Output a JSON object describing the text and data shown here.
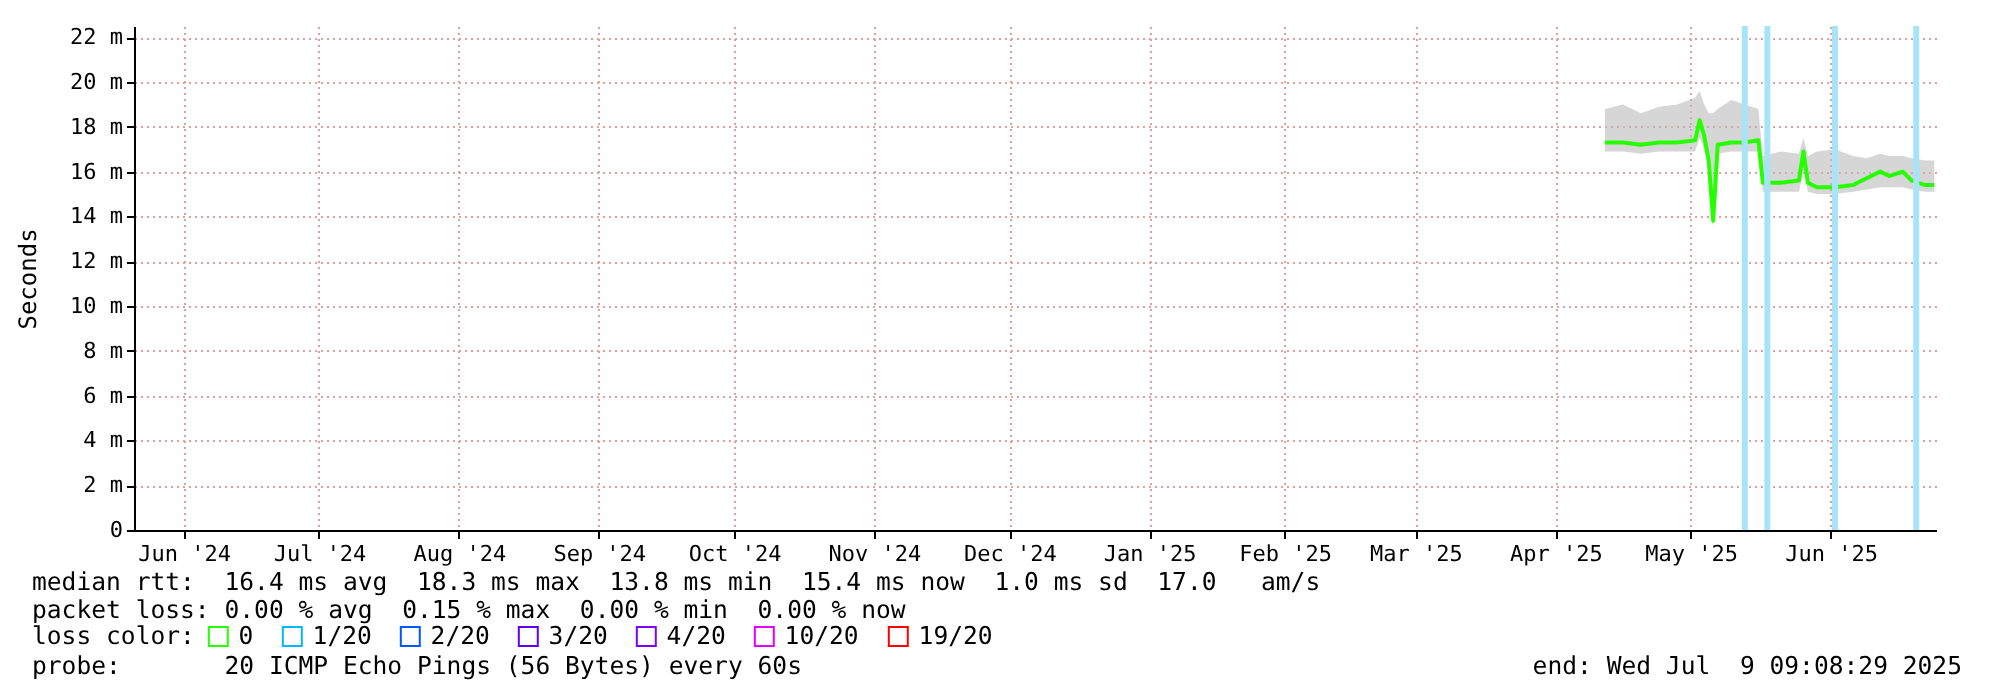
{
  "chart_data": {
    "type": "line",
    "ylabel": "Seconds",
    "legend_title": "loss color:",
    "legend": "bottom left",
    "grid": true,
    "xlim": [
      "2024-06-05",
      "2025-07-09T09:08"
    ],
    "xticks": [
      {
        "value": "2024-06-16",
        "label": "Jun '24"
      },
      {
        "value": "2024-07-16",
        "label": "Jul '24"
      },
      {
        "value": "2024-08-16",
        "label": "Aug '24"
      },
      {
        "value": "2024-09-16",
        "label": "Sep '24"
      },
      {
        "value": "2024-10-16",
        "label": "Oct '24"
      },
      {
        "value": "2024-11-16",
        "label": "Nov '24"
      },
      {
        "value": "2024-12-16",
        "label": "Dec '24"
      },
      {
        "value": "2025-01-16",
        "label": "Jan '25"
      },
      {
        "value": "2025-02-15",
        "label": "Feb '25"
      },
      {
        "value": "2025-03-16",
        "label": "Mar '25"
      },
      {
        "value": "2025-04-16",
        "label": "Apr '25"
      },
      {
        "value": "2025-05-16",
        "label": "May '25"
      },
      {
        "value": "2025-06-16",
        "label": "Jun '25"
      }
    ],
    "ylim": [
      0,
      22.5
    ],
    "yticks": [
      0,
      {
        "value": 2,
        "label": "2 m"
      },
      {
        "value": 4,
        "label": "4 m"
      },
      {
        "value": 6,
        "label": "6 m"
      },
      {
        "value": 8,
        "label": "8 m"
      },
      {
        "value": 10,
        "label": "10 m"
      },
      {
        "value": 12,
        "label": "12 m"
      },
      {
        "value": 14,
        "label": "14 m"
      },
      {
        "value": 16,
        "label": "16 m"
      },
      {
        "value": 18,
        "label": "18 m"
      },
      {
        "value": 20,
        "label": "20 m"
      },
      {
        "value": 22,
        "label": "22 m"
      }
    ],
    "x": [
      "2025-04-27",
      "2025-05-01",
      "2025-05-05",
      "2025-05-09",
      "2025-05-13",
      "2025-05-17",
      "2025-05-18",
      "2025-05-19",
      "2025-05-20",
      "2025-05-21",
      "2025-05-22",
      "2025-05-25",
      "2025-05-28",
      "2025-05-31",
      "2025-06-01",
      "2025-06-05",
      "2025-06-09",
      "2025-06-10",
      "2025-06-11",
      "2025-06-13",
      "2025-06-17",
      "2025-06-21",
      "2025-06-24",
      "2025-06-27",
      "2025-06-29",
      "2025-07-02",
      "2025-07-04",
      "2025-07-07",
      "2025-07-09"
    ],
    "series": [
      {
        "name": "0",
        "color": "#26ff00",
        "values": [
          17.3,
          17.3,
          17.2,
          17.3,
          17.3,
          17.4,
          18.3,
          17.6,
          16.5,
          13.8,
          17.2,
          17.3,
          17.3,
          17.4,
          15.5,
          15.5,
          15.6,
          16.9,
          15.5,
          15.3,
          15.3,
          15.4,
          15.7,
          16.0,
          15.8,
          16.0,
          15.6,
          15.4,
          15.4
        ],
        "lower": [
          16.9,
          16.9,
          16.8,
          16.9,
          16.9,
          16.9,
          17.5,
          17.0,
          16.0,
          13.5,
          16.8,
          16.9,
          16.9,
          16.9,
          15.1,
          15.1,
          15.1,
          16.0,
          15.1,
          15.0,
          15.0,
          15.1,
          15.2,
          15.3,
          15.3,
          15.3,
          15.2,
          15.1,
          15.1
        ],
        "upper": [
          18.8,
          19.0,
          18.6,
          18.9,
          19.0,
          19.3,
          19.6,
          19.0,
          18.6,
          18.6,
          18.8,
          19.2,
          19.0,
          18.8,
          16.7,
          16.9,
          16.8,
          17.5,
          16.7,
          16.9,
          17.0,
          16.7,
          16.6,
          16.8,
          16.7,
          16.7,
          16.6,
          16.5,
          16.5
        ]
      },
      {
        "name": "1/20",
        "color": "#00b8ff",
        "values": [
          null,
          null,
          null,
          null,
          null,
          null,
          null,
          null,
          null,
          null,
          null,
          null,
          null,
          null,
          null,
          null,
          null,
          null,
          null,
          null,
          null,
          null,
          null,
          null,
          null,
          null,
          null,
          null,
          null
        ]
      },
      {
        "name": "2/20",
        "color": "#0059ff",
        "values": [
          null,
          null,
          null,
          null,
          null,
          null,
          null,
          null,
          null,
          null,
          null,
          null,
          null,
          null,
          null,
          null,
          null,
          null,
          null,
          null,
          null,
          null,
          null,
          null,
          null,
          null,
          null,
          null,
          null
        ]
      },
      {
        "name": "3/20",
        "color": "#5e00ff",
        "values": [
          null,
          null,
          null,
          null,
          null,
          null,
          null,
          null,
          null,
          null,
          null,
          null,
          null,
          null,
          null,
          null,
          null,
          null,
          null,
          null,
          null,
          null,
          null,
          null,
          null,
          null,
          null,
          null,
          null
        ]
      },
      {
        "name": "4/20",
        "color": "#7e00ff",
        "values": [
          null,
          null,
          null,
          null,
          null,
          null,
          null,
          null,
          null,
          null,
          null,
          null,
          null,
          null,
          null,
          null,
          null,
          null,
          null,
          null,
          null,
          null,
          null,
          null,
          null,
          null,
          null,
          null,
          null
        ]
      },
      {
        "name": "10/20",
        "color": "#dd00ff",
        "values": [
          null,
          null,
          null,
          null,
          null,
          null,
          null,
          null,
          null,
          null,
          null,
          null,
          null,
          null,
          null,
          null,
          null,
          null,
          null,
          null,
          null,
          null,
          null,
          null,
          null,
          null,
          null,
          null,
          null
        ]
      },
      {
        "name": "19/20",
        "color": "#ff0000",
        "values": [
          null,
          null,
          null,
          null,
          null,
          null,
          null,
          null,
          null,
          null,
          null,
          null,
          null,
          null,
          null,
          null,
          null,
          null,
          null,
          null,
          null,
          null,
          null,
          null,
          null,
          null,
          null,
          null,
          null
        ]
      }
    ],
    "ref_lines": [
      {
        "axis": "x",
        "value": "2025-05-28",
        "color": "#a8e4f8"
      },
      {
        "axis": "x",
        "value": "2025-06-02",
        "color": "#a8e4f8"
      },
      {
        "axis": "x",
        "value": "2025-06-17",
        "color": "#a8e4f8"
      },
      {
        "axis": "x",
        "value": "2025-07-05",
        "color": "#a8e4f8"
      }
    ],
    "annotations": [
      "median rtt:  16.4 ms avg  18.3 ms max  13.8 ms min  15.4 ms now  1.0 ms sd  17.0   am/s",
      "packet loss: 0.00 % avg  0.15 % max  0.00 % min  0.00 % now",
      "probe:       20 ICMP Echo Pings (56 Bytes) every 60s",
      "end: Wed Jul  9 09:08:29 2025"
    ]
  }
}
